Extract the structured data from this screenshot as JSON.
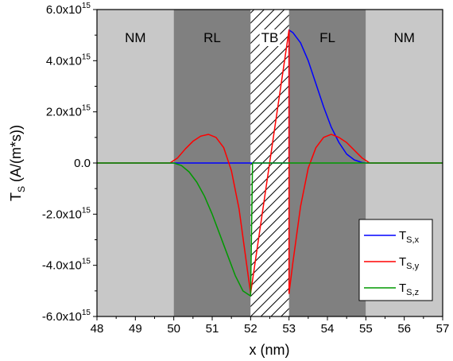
{
  "chart_data": {
    "type": "line",
    "xlabel": "x (nm)",
    "ylabel_main": "T",
    "ylabel_sub": "S",
    "ylabel_unit": " (A/(m*s))",
    "xlim": [
      48,
      57
    ],
    "ylim": [
      -6000000000000000.0,
      6000000000000000.0
    ],
    "x_ticks": [
      48,
      49,
      50,
      51,
      52,
      53,
      54,
      55,
      56,
      57
    ],
    "y_ticks": [
      {
        "value": 6000000000000000.0,
        "mantissa": "6.0x10",
        "exp": "15"
      },
      {
        "value": 4000000000000000.0,
        "mantissa": "4.0x10",
        "exp": "15"
      },
      {
        "value": 2000000000000000.0,
        "mantissa": "2.0x10",
        "exp": "15"
      },
      {
        "value": 0,
        "mantissa": "0.0",
        "exp": ""
      },
      {
        "value": -2000000000000000.0,
        "mantissa": "-2.0x10",
        "exp": "15"
      },
      {
        "value": -4000000000000000.0,
        "mantissa": "-4.0x10",
        "exp": "15"
      },
      {
        "value": -6000000000000000.0,
        "mantissa": "-6.0x10",
        "exp": "15"
      }
    ],
    "regions": [
      {
        "label": "NM",
        "x0": 48,
        "x1": 50,
        "color": "#c8c8c8"
      },
      {
        "label": "RL",
        "x0": 50,
        "x1": 52,
        "color": "#808080"
      },
      {
        "label": "TB",
        "x0": 52,
        "x1": 53,
        "color": "hatch"
      },
      {
        "label": "FL",
        "x0": 53,
        "x1": 55,
        "color": "#808080"
      },
      {
        "label": "NM",
        "x0": 55,
        "x1": 57,
        "color": "#c8c8c8"
      }
    ],
    "grid": false,
    "legend_position": "bottom-right",
    "series": [
      {
        "name": "T",
        "sub": "S,x",
        "color": "#0000ff",
        "x": [
          48,
          53,
          53,
          53.1,
          53.3,
          53.5,
          53.7,
          53.9,
          54.1,
          54.3,
          54.5,
          54.7,
          54.9,
          55,
          57
        ],
        "y": [
          0,
          0,
          5200000000000000.0,
          5100000000000000.0,
          4700000000000000.0,
          4000000000000000.0,
          3100000000000000.0,
          2200000000000000.0,
          1400000000000000.0,
          800000000000000.0,
          350000000000000.0,
          120000000000000.0,
          20000000000000.0,
          0,
          0
        ]
      },
      {
        "name": "T",
        "sub": "S,y",
        "color": "#ff0000",
        "x": [
          48,
          49.9,
          50.1,
          50.3,
          50.5,
          50.7,
          50.9,
          51.1,
          51.3,
          51.5,
          51.7,
          51.9,
          52,
          52,
          53,
          53,
          53.1,
          53.3,
          53.5,
          53.7,
          53.9,
          54.1,
          54.3,
          54.5,
          54.7,
          54.9,
          55.1,
          57
        ],
        "y": [
          0,
          0,
          200000000000000.0,
          550000000000000.0,
          850000000000000.0,
          1050000000000000.0,
          1120000000000000.0,
          1000000000000000.0,
          600000000000000.0,
          -300000000000000.0,
          -1800000000000000.0,
          -4000000000000000.0,
          -5100000000000000.0,
          -5100000000000000.0,
          5200000000000000.0,
          -5100000000000000.0,
          -3900000000000000.0,
          -1700000000000000.0,
          -200000000000000.0,
          600000000000000.0,
          1000000000000000.0,
          1120000000000000.0,
          1000000000000000.0,
          800000000000000.0,
          500000000000000.0,
          200000000000000.0,
          0,
          0
        ]
      },
      {
        "name": "T",
        "sub": "S,z",
        "color": "#009900",
        "x": [
          48,
          50,
          50.2,
          50.4,
          50.6,
          50.8,
          51,
          51.2,
          51.4,
          51.6,
          51.8,
          52,
          52,
          52.05,
          57
        ],
        "y": [
          0,
          0,
          -100000000000000.0,
          -350000000000000.0,
          -750000000000000.0,
          -1300000000000000.0,
          -2000000000000000.0,
          -2800000000000000.0,
          -3600000000000000.0,
          -4400000000000000.0,
          -5000000000000000.0,
          -5200000000000000.0,
          -5200000000000000.0,
          0,
          0
        ]
      }
    ]
  }
}
